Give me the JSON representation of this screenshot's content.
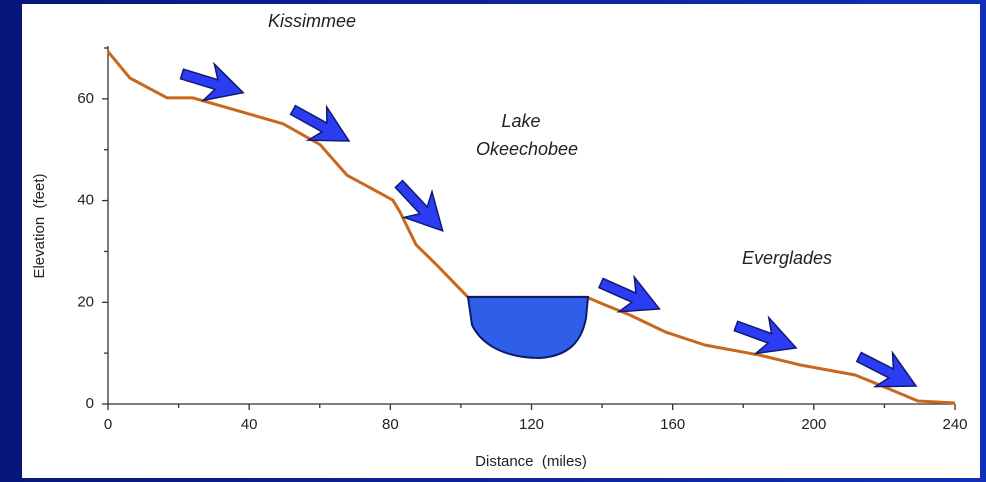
{
  "chart_data": {
    "type": "line",
    "x_label": "Distance  (miles)",
    "y_label": "Elevation  (feet)",
    "annotations": [
      [
        "Kissimmee"
      ],
      [
        "Lake",
        "Okeechobee"
      ],
      [
        "Everglades"
      ]
    ],
    "series": [
      {
        "color": "#c9671c",
        "x": [
          0,
          6.2,
          16.7,
          24,
          49.6,
          60.1,
          67.7,
          80.7,
          82.7,
          87.3,
          93.2,
          102,
          135.7,
          140.8,
          147.9,
          157.8,
          169.1,
          184.7,
          196,
          211.7,
          218.8,
          229.5,
          240
        ],
        "values": [
          69.3,
          64.1,
          60.2,
          60.2,
          55.1,
          51,
          45,
          40.1,
          37.8,
          31.3,
          27.3,
          21,
          21,
          19.5,
          17.5,
          14.2,
          11.6,
          9.6,
          7.7,
          5.7,
          3.7,
          0.6,
          0.2
        ]
      }
    ],
    "xlim": [
      0,
      240
    ],
    "xticks": [
      0,
      40,
      80,
      120,
      160,
      200,
      240
    ],
    "xticks_minor": [
      20,
      60,
      100,
      140,
      180,
      220
    ],
    "ylim": [
      0,
      70
    ],
    "yticks": [
      0,
      20,
      40,
      60
    ],
    "yticks_minor": [
      10,
      30,
      50,
      70
    ]
  }
}
